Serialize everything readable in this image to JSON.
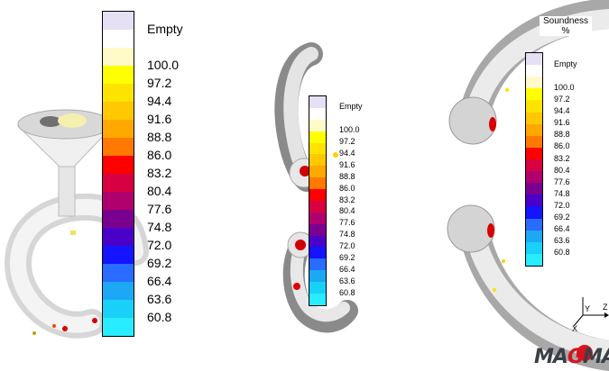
{
  "legend": {
    "empty_label": "Empty",
    "labels": [
      "100.0",
      "97.2",
      "94.4",
      "91.6",
      "88.8",
      "86.0",
      "83.2",
      "80.4",
      "77.6",
      "74.8",
      "72.0",
      "69.2",
      "66.4",
      "63.6",
      "60.8"
    ],
    "colors": [
      "#e6e0f4",
      "#ffffff",
      "#fffac8",
      "#ffff00",
      "#ffe300",
      "#ffc800",
      "#ffa800",
      "#ff7800",
      "#ff0000",
      "#d80040",
      "#b0006e",
      "#7a0090",
      "#4a00c8",
      "#1414ff",
      "#2a6cff",
      "#1ca8f4",
      "#18d0f8",
      "#28ecff"
    ]
  },
  "right_panel": {
    "title_line1": "Soundness",
    "title_line2": "%"
  },
  "axes": {
    "y_label": "Y",
    "z_label": "Z",
    "x_label": "X"
  },
  "logo": {
    "text_a": "MA",
    "text_g": "G",
    "text_b": "MA"
  }
}
